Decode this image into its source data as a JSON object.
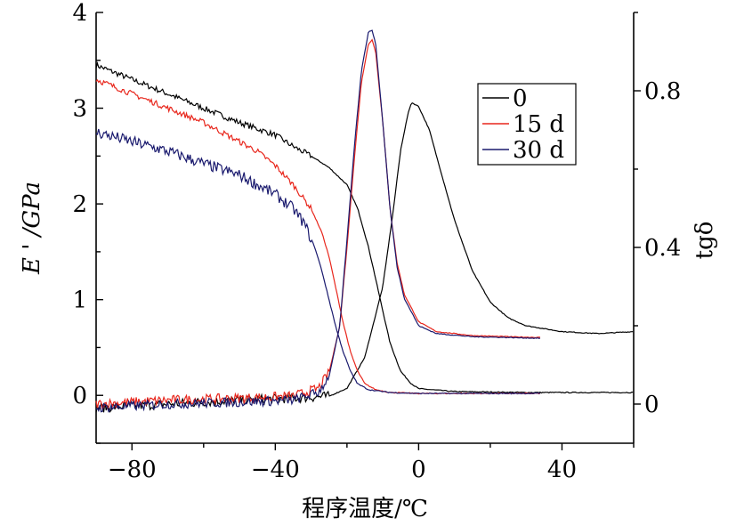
{
  "chart_data": {
    "type": "line",
    "title": "",
    "xlabel": "程序温度/℃",
    "ylabel_left": "E ' /GPa",
    "ylabel_right": "tgδ",
    "xlim": [
      -90,
      60
    ],
    "ylim_left": [
      -0.5,
      4
    ],
    "ylim_right": [
      -0.1,
      1.0
    ],
    "x_ticks": [
      "-80",
      "-40",
      "0",
      "40"
    ],
    "x_tick_values": [
      -80,
      -40,
      0,
      40
    ],
    "y_left_ticks": [
      "0",
      "1",
      "2",
      "3",
      "4"
    ],
    "y_left_tick_values": [
      0,
      1,
      2,
      3,
      4
    ],
    "y_right_ticks": [
      "0",
      "0.4",
      "0.8"
    ],
    "y_right_tick_values": [
      0,
      0.4,
      0.8
    ],
    "legend": {
      "position": "top-right",
      "entries": [
        {
          "label": "0",
          "color": "#000000"
        },
        {
          "label": "15 d",
          "color": "#e8261c"
        },
        {
          "label": "30 d",
          "color": "#1a1a6e"
        }
      ]
    },
    "series": [
      {
        "name": "0",
        "color": "#000000",
        "E_prime": [
          [
            -90,
            3.45
          ],
          [
            -80,
            3.3
          ],
          [
            -70,
            3.15
          ],
          [
            -60,
            3.0
          ],
          [
            -50,
            2.85
          ],
          [
            -40,
            2.72
          ],
          [
            -35,
            2.6
          ],
          [
            -30,
            2.5
          ],
          [
            -25,
            2.38
          ],
          [
            -20,
            2.2
          ],
          [
            -17,
            1.95
          ],
          [
            -14,
            1.55
          ],
          [
            -11,
            1.05
          ],
          [
            -8,
            0.55
          ],
          [
            -5,
            0.25
          ],
          [
            -2,
            0.12
          ],
          [
            0,
            0.07
          ],
          [
            10,
            0.04
          ],
          [
            30,
            0.03
          ],
          [
            60,
            0.03
          ]
        ],
        "tan_delta": [
          [
            -90,
            -0.01
          ],
          [
            -70,
            0.0
          ],
          [
            -50,
            0.01
          ],
          [
            -35,
            0.015
          ],
          [
            -25,
            0.02
          ],
          [
            -20,
            0.04
          ],
          [
            -15,
            0.12
          ],
          [
            -10,
            0.3
          ],
          [
            -7,
            0.5
          ],
          [
            -5,
            0.65
          ],
          [
            -3,
            0.74
          ],
          [
            -2,
            0.77
          ],
          [
            0,
            0.76
          ],
          [
            3,
            0.7
          ],
          [
            6,
            0.6
          ],
          [
            10,
            0.47
          ],
          [
            15,
            0.34
          ],
          [
            20,
            0.26
          ],
          [
            25,
            0.22
          ],
          [
            30,
            0.2
          ],
          [
            40,
            0.185
          ],
          [
            50,
            0.18
          ],
          [
            60,
            0.185
          ]
        ]
      },
      {
        "name": "15 d",
        "color": "#e8261c",
        "E_prime": [
          [
            -90,
            3.3
          ],
          [
            -80,
            3.15
          ],
          [
            -70,
            3.0
          ],
          [
            -60,
            2.85
          ],
          [
            -50,
            2.65
          ],
          [
            -45,
            2.55
          ],
          [
            -40,
            2.4
          ],
          [
            -35,
            2.2
          ],
          [
            -30,
            1.95
          ],
          [
            -27,
            1.7
          ],
          [
            -25,
            1.45
          ],
          [
            -23,
            1.1
          ],
          [
            -21,
            0.75
          ],
          [
            -19,
            0.45
          ],
          [
            -17,
            0.25
          ],
          [
            -15,
            0.12
          ],
          [
            -12,
            0.06
          ],
          [
            -8,
            0.03
          ],
          [
            0,
            0.02
          ],
          [
            34,
            0.02
          ]
        ],
        "tan_delta": [
          [
            -90,
            0.0
          ],
          [
            -70,
            0.01
          ],
          [
            -50,
            0.015
          ],
          [
            -35,
            0.02
          ],
          [
            -28,
            0.04
          ],
          [
            -25,
            0.08
          ],
          [
            -22,
            0.2
          ],
          [
            -20,
            0.4
          ],
          [
            -18,
            0.62
          ],
          [
            -16,
            0.82
          ],
          [
            -14,
            0.92
          ],
          [
            -13,
            0.93
          ],
          [
            -12,
            0.9
          ],
          [
            -10,
            0.72
          ],
          [
            -8,
            0.5
          ],
          [
            -6,
            0.36
          ],
          [
            -4,
            0.28
          ],
          [
            0,
            0.21
          ],
          [
            5,
            0.185
          ],
          [
            15,
            0.175
          ],
          [
            25,
            0.172
          ],
          [
            34,
            0.17
          ]
        ]
      },
      {
        "name": "30 d",
        "color": "#1a1a6e",
        "E_prime": [
          [
            -90,
            2.75
          ],
          [
            -80,
            2.65
          ],
          [
            -70,
            2.55
          ],
          [
            -60,
            2.42
          ],
          [
            -50,
            2.3
          ],
          [
            -45,
            2.2
          ],
          [
            -40,
            2.1
          ],
          [
            -35,
            1.95
          ],
          [
            -32,
            1.8
          ],
          [
            -29,
            1.55
          ],
          [
            -27,
            1.3
          ],
          [
            -25,
            1.0
          ],
          [
            -23,
            0.7
          ],
          [
            -21,
            0.45
          ],
          [
            -19,
            0.25
          ],
          [
            -17,
            0.12
          ],
          [
            -14,
            0.06
          ],
          [
            -8,
            0.03
          ],
          [
            0,
            0.02
          ],
          [
            34,
            0.02
          ]
        ],
        "tan_delta": [
          [
            -90,
            -0.01
          ],
          [
            -70,
            0.0
          ],
          [
            -50,
            0.005
          ],
          [
            -35,
            0.01
          ],
          [
            -28,
            0.03
          ],
          [
            -25,
            0.07
          ],
          [
            -22,
            0.2
          ],
          [
            -20,
            0.42
          ],
          [
            -18,
            0.65
          ],
          [
            -16,
            0.85
          ],
          [
            -14,
            0.95
          ],
          [
            -13,
            0.955
          ],
          [
            -12,
            0.92
          ],
          [
            -10,
            0.72
          ],
          [
            -8,
            0.5
          ],
          [
            -6,
            0.35
          ],
          [
            -4,
            0.27
          ],
          [
            0,
            0.2
          ],
          [
            5,
            0.18
          ],
          [
            15,
            0.172
          ],
          [
            25,
            0.17
          ],
          [
            34,
            0.168
          ]
        ]
      }
    ]
  }
}
